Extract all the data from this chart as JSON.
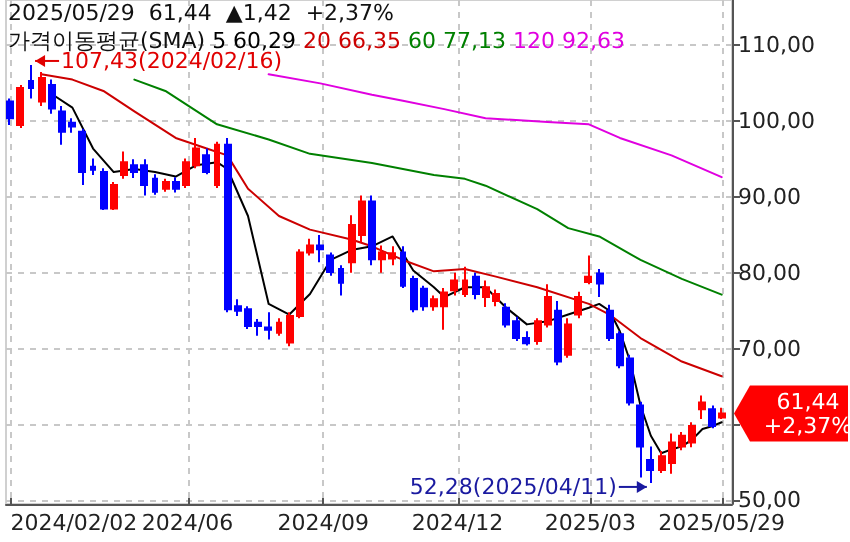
{
  "chart_data": {
    "type": "candlestick",
    "title": "2025/05/29  61,44  ▲1,42  +2,37%",
    "legend_title": "가격이동평균(SMA)",
    "legend": "top",
    "grid": true,
    "marker": "none",
    "x": [
      "2024-02-02",
      "2024-02-09",
      "2024-02-16",
      "2024-02-23",
      "2024-03-01",
      "2024-03-08",
      "2024-03-15",
      "2024-03-22",
      "2024-03-29",
      "2024-04-05",
      "2024-04-12",
      "2024-04-19",
      "2024-04-26",
      "2024-05-03",
      "2024-05-10",
      "2024-05-17",
      "2024-05-24",
      "2024-05-31",
      "2024-06-07",
      "2024-06-14",
      "2024-06-21",
      "2024-06-28",
      "2024-07-05",
      "2024-07-12",
      "2024-07-19",
      "2024-07-26",
      "2024-08-02",
      "2024-08-09",
      "2024-08-16",
      "2024-08-23",
      "2024-08-30",
      "2024-09-06",
      "2024-09-13",
      "2024-09-20",
      "2024-09-27",
      "2024-10-04",
      "2024-10-11",
      "2024-10-18",
      "2024-10-25",
      "2024-11-01",
      "2024-11-08",
      "2024-11-15",
      "2024-11-22",
      "2024-11-29",
      "2024-12-06",
      "2024-12-13",
      "2024-12-20",
      "2024-12-27",
      "2025-01-03",
      "2025-01-10",
      "2025-01-17",
      "2025-01-24",
      "2025-01-31",
      "2025-02-07",
      "2025-02-14",
      "2025-02-21",
      "2025-02-28",
      "2025-03-07",
      "2025-03-14",
      "2025-03-21",
      "2025-03-28",
      "2025-04-04",
      "2025-04-11",
      "2025-04-18",
      "2025-04-25",
      "2025-05-02",
      "2025-05-09",
      "2025-05-16",
      "2025-05-23",
      "2025-05-29"
    ],
    "ohlc": [
      [
        102.6,
        103,
        99.5,
        100.4
      ],
      [
        99.5,
        104.8,
        99.1,
        104.4
      ],
      [
        105.3,
        107.43,
        103,
        104.4
      ],
      [
        102.6,
        106.5,
        102,
        105.7
      ],
      [
        104.8,
        105.5,
        101,
        101.7
      ],
      [
        101.3,
        102,
        96.9,
        98.6
      ],
      [
        99.8,
        100.4,
        98.5,
        99.3
      ],
      [
        98.6,
        99,
        91.6,
        93.3
      ],
      [
        94,
        95.1,
        92.9,
        93.6
      ],
      [
        93.3,
        93.8,
        88.3,
        88.5
      ],
      [
        88.5,
        92,
        88.3,
        91.6
      ],
      [
        92.9,
        96,
        92.4,
        94.6
      ],
      [
        94.2,
        95,
        92.5,
        93.3
      ],
      [
        94.2,
        95,
        90.2,
        91.6
      ],
      [
        92.4,
        93,
        90.3,
        90.7
      ],
      [
        91.1,
        92.4,
        90.7,
        92
      ],
      [
        92,
        92.6,
        90.6,
        91.1
      ],
      [
        91.6,
        95.1,
        91.2,
        94.6
      ],
      [
        94.2,
        97.8,
        93.8,
        96.4
      ],
      [
        95.5,
        96.4,
        93,
        93.3
      ],
      [
        91.6,
        97.3,
        91.2,
        96.9
      ],
      [
        96.9,
        97.8,
        74.8,
        75.2
      ],
      [
        75.6,
        76.5,
        74.3,
        75
      ],
      [
        75.2,
        75.6,
        72.6,
        73
      ],
      [
        73.4,
        73.9,
        71.7,
        73
      ],
      [
        72.8,
        74.8,
        71.2,
        72.5
      ],
      [
        72.1,
        74,
        71.7,
        73.4
      ],
      [
        70.8,
        74.8,
        70.3,
        74.3
      ],
      [
        74.3,
        83.1,
        74,
        82.7
      ],
      [
        82.7,
        84.5,
        82.3,
        83.6
      ],
      [
        83.6,
        85,
        81.4,
        83.1
      ],
      [
        82.3,
        82.7,
        79.6,
        80.1
      ],
      [
        80.5,
        81,
        77,
        78.7
      ],
      [
        81.4,
        87.6,
        80,
        86.3
      ],
      [
        85,
        90.2,
        84,
        89.4
      ],
      [
        89.4,
        90.2,
        81,
        81.8
      ],
      [
        81.8,
        83.6,
        80,
        82.7
      ],
      [
        81.9,
        83.5,
        81,
        82.6
      ],
      [
        82.7,
        83.5,
        78,
        78.3
      ],
      [
        79.2,
        79.6,
        74.8,
        75.2
      ],
      [
        77.9,
        78.3,
        75,
        75.6
      ],
      [
        75.6,
        77,
        75,
        76.5
      ],
      [
        75.6,
        78,
        72.5,
        77.4
      ],
      [
        77.7,
        80,
        77,
        79
      ],
      [
        77.2,
        80.8,
        76.8,
        79
      ],
      [
        79.5,
        80,
        76.5,
        77.2
      ],
      [
        76.8,
        79,
        75.5,
        78.1
      ],
      [
        76.3,
        77.8,
        75.6,
        77.2
      ],
      [
        75.4,
        76,
        72.8,
        73.2
      ],
      [
        73.6,
        74.2,
        71,
        71.4
      ],
      [
        71.4,
        72.3,
        70.4,
        70.7
      ],
      [
        71,
        74,
        70.5,
        73.6
      ],
      [
        73.2,
        78.5,
        72.8,
        76.8
      ],
      [
        75,
        76.3,
        67.8,
        68.3
      ],
      [
        69.2,
        74,
        68.8,
        73.2
      ],
      [
        74.5,
        77.5,
        74,
        76.8
      ],
      [
        78.8,
        82.3,
        78.5,
        79.5
      ],
      [
        79.9,
        80.5,
        76.8,
        78.6
      ],
      [
        75,
        75.8,
        71,
        71.4
      ],
      [
        71.9,
        72.3,
        67.4,
        67.8
      ],
      [
        68.7,
        69.2,
        62.5,
        62.9
      ],
      [
        62.5,
        63,
        53,
        57.1
      ],
      [
        55.3,
        57.1,
        52.28,
        54
      ],
      [
        54,
        56.5,
        53.6,
        55.8
      ],
      [
        54.9,
        58.8,
        53.5,
        57.6
      ],
      [
        57.1,
        59,
        56.6,
        58.5
      ],
      [
        57.6,
        60.3,
        57,
        59.8
      ],
      [
        62,
        63.8,
        60.7,
        62.9
      ],
      [
        62,
        62.5,
        59.5,
        59.8
      ],
      [
        60.9,
        62.2,
        60.7,
        61.44
      ]
    ],
    "colors": [
      "#0000ff",
      "#ff0000",
      "#0000ff",
      "#ff0000",
      "#0000ff",
      "#0000ff",
      "#0000ff",
      "#0000ff",
      "#0000ff",
      "#0000ff",
      "#ff0000",
      "#ff0000",
      "#0000ff",
      "#0000ff",
      "#0000ff",
      "#ff0000",
      "#0000ff",
      "#ff0000",
      "#ff0000",
      "#0000ff",
      "#ff0000",
      "#0000ff",
      "#0000ff",
      "#0000ff",
      "#0000ff",
      "#0000ff",
      "#ff0000",
      "#ff0000",
      "#ff0000",
      "#ff0000",
      "#0000ff",
      "#0000ff",
      "#0000ff",
      "#ff0000",
      "#ff0000",
      "#0000ff",
      "#ff0000",
      "#ff0000",
      "#0000ff",
      "#0000ff",
      "#0000ff",
      "#ff0000",
      "#ff0000",
      "#ff0000",
      "#ff0000",
      "#0000ff",
      "#ff0000",
      "#ff0000",
      "#0000ff",
      "#0000ff",
      "#0000ff",
      "#ff0000",
      "#ff0000",
      "#0000ff",
      "#ff0000",
      "#ff0000",
      "#ff0000",
      "#0000ff",
      "#0000ff",
      "#0000ff",
      "#0000ff",
      "#0000ff",
      "#0000ff",
      "#ff0000",
      "#ff0000",
      "#ff0000",
      "#ff0000",
      "#ff0000",
      "#0000ff",
      "#ff0000"
    ],
    "series": [
      {
        "type": "line",
        "name": "5 60,29",
        "color": "#000000",
        "x": [
          "2024-03-01",
          "2024-03-15",
          "2024-03-29",
          "2024-04-12",
          "2024-04-26",
          "2024-05-10",
          "2024-05-24",
          "2024-06-07",
          "2024-06-21",
          "2024-06-28",
          "2024-07-12",
          "2024-07-26",
          "2024-08-09",
          "2024-08-23",
          "2024-09-06",
          "2024-09-20",
          "2024-10-04",
          "2024-10-18",
          "2024-11-01",
          "2024-11-15",
          "2024-11-22",
          "2024-12-06",
          "2024-12-20",
          "2025-01-03",
          "2025-01-17",
          "2025-01-31",
          "2025-02-14",
          "2025-02-28",
          "2025-03-07",
          "2025-03-14",
          "2025-03-21",
          "2025-03-28",
          "2025-04-04",
          "2025-04-11",
          "2025-04-18",
          "2025-04-25",
          "2025-05-02",
          "2025-05-09",
          "2025-05-16",
          "2025-05-23",
          "2025-05-29"
        ],
        "values": [
          103.6,
          101.8,
          96.4,
          93.3,
          93.7,
          93.3,
          92.7,
          94.2,
          94.6,
          93.7,
          87.5,
          75.9,
          74.5,
          77.2,
          81.7,
          83,
          83.5,
          84.8,
          80.3,
          78.1,
          76.8,
          78.1,
          78.1,
          75.4,
          73.2,
          73.6,
          74.5,
          75.4,
          75.9,
          75,
          72.3,
          68.3,
          62.5,
          58.5,
          56.2,
          56.7,
          57.1,
          58,
          59.4,
          59.8,
          60.29
        ]
      },
      {
        "type": "line",
        "name": "20 66,35",
        "color": "#cc0000",
        "x": [
          "2024-02-23",
          "2024-03-15",
          "2024-04-05",
          "2024-04-26",
          "2024-05-24",
          "2024-06-14",
          "2024-06-28",
          "2024-07-12",
          "2024-08-02",
          "2024-08-23",
          "2024-09-20",
          "2024-10-04",
          "2024-10-25",
          "2024-11-15",
          "2024-12-06",
          "2024-12-27",
          "2025-01-24",
          "2025-02-28",
          "2025-03-14",
          "2025-04-04",
          "2025-05-02",
          "2025-05-29"
        ],
        "values": [
          106.2,
          105.5,
          104,
          101.3,
          97.8,
          96.4,
          95.5,
          91.1,
          87.5,
          85.7,
          84.4,
          83.5,
          81.7,
          80.2,
          80.5,
          79.5,
          78.1,
          75.9,
          74.5,
          71.4,
          68.3,
          66.35
        ]
      },
      {
        "type": "line",
        "name": "60 77,13",
        "color": "#008000",
        "x": [
          "2024-04-26",
          "2024-05-17",
          "2024-06-21",
          "2024-07-26",
          "2024-08-23",
          "2024-10-04",
          "2024-10-25",
          "2024-11-15",
          "2024-12-06",
          "2024-12-20",
          "2025-01-24",
          "2025-02-14",
          "2025-03-07",
          "2025-04-04",
          "2025-05-02",
          "2025-05-29"
        ],
        "values": [
          105.5,
          104,
          99.6,
          97.6,
          95.7,
          94.5,
          93.7,
          92.9,
          92.4,
          91.5,
          88.4,
          85.9,
          84.8,
          81.7,
          79.2,
          77.13
        ]
      },
      {
        "type": "line",
        "name": "120 92,63",
        "color": "#e000e0",
        "x": [
          "2024-07-26",
          "2024-08-30",
          "2024-10-04",
          "2024-10-25",
          "2024-11-22",
          "2024-12-20",
          "2025-01-31",
          "2025-02-28",
          "2025-03-21",
          "2025-04-25",
          "2025-05-29"
        ],
        "values": [
          106.2,
          105,
          103.5,
          102.7,
          101.6,
          100.4,
          99.9,
          99.6,
          97.8,
          95.5,
          92.63
        ]
      }
    ],
    "xlim": [
      "2024-01-30",
      "2025-06-05"
    ],
    "xticks": [
      {
        "value": "2024-02-02",
        "label": "2024/02/02"
      },
      {
        "value": "2024-06",
        "label": "2024/06"
      },
      {
        "value": "2024-09",
        "label": "2024/09"
      },
      {
        "value": "2024-12",
        "label": "2024/12"
      },
      {
        "value": "2025-03",
        "label": "2025/03"
      },
      {
        "value": "2025-05-29",
        "label": "2025/05/29"
      }
    ],
    "ylim": [
      49.5,
      116
    ],
    "yticks": [
      {
        "value": 50,
        "label": "50,00"
      },
      {
        "value": 60,
        "label": null
      },
      {
        "value": 70,
        "label": "70,00"
      },
      {
        "value": 80,
        "label": "80,00"
      },
      {
        "value": 90,
        "label": "90,00"
      },
      {
        "value": 100,
        "label": "100,00"
      },
      {
        "value": 110,
        "label": "110,00"
      }
    ],
    "annotations": [
      {
        "text": "107,43(2024/02/16)",
        "x": "2024-02-16",
        "y": 107.43
      },
      {
        "text": "52,28(2025/04/11)",
        "x": "2025-04-11",
        "y": 52.28
      },
      {
        "text": "61,44\n+2,37%",
        "x": "2025-05-29",
        "y": 61.44
      }
    ]
  }
}
